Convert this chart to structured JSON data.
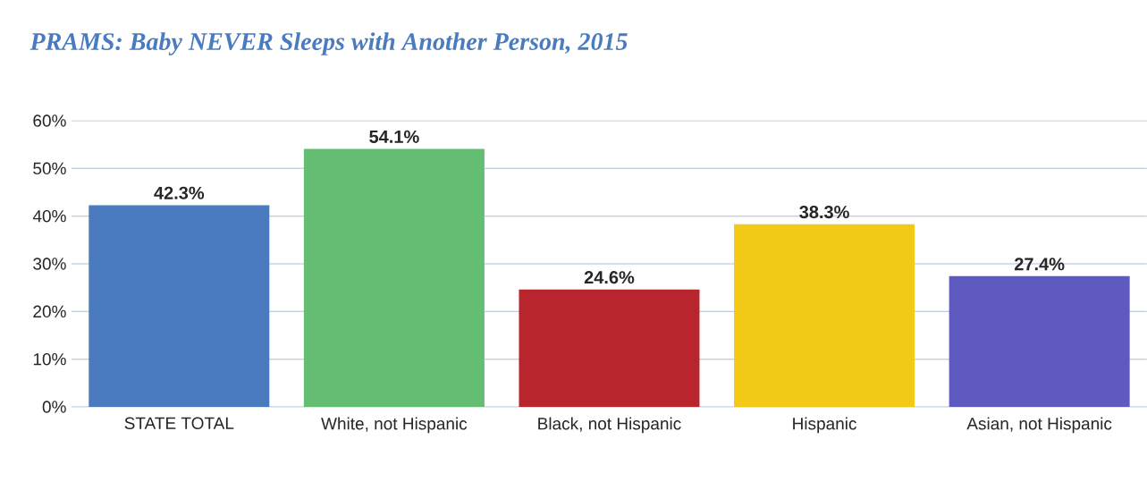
{
  "chart_data": {
    "type": "bar",
    "title": "PRAMS: Baby NEVER Sleeps with Another Person, 2015",
    "categories": [
      "STATE TOTAL",
      "White, not Hispanic",
      "Black, not Hispanic",
      "Hispanic",
      "Asian, not Hispanic"
    ],
    "values": [
      42.3,
      54.1,
      24.6,
      38.3,
      27.4
    ],
    "value_labels": [
      "42.3%",
      "54.1%",
      "24.6%",
      "38.3%",
      "27.4%"
    ],
    "colors": [
      "#4a7bbf",
      "#63bd72",
      "#b8252c",
      "#f2c916",
      "#5f5ac0"
    ],
    "ylim": [
      0,
      60
    ],
    "yticks": [
      {
        "value": 0,
        "label": "0%"
      },
      {
        "value": 10,
        "label": "10%"
      },
      {
        "value": 20,
        "label": "20%"
      },
      {
        "value": 30,
        "label": "30%"
      },
      {
        "value": 40,
        "label": "40%"
      },
      {
        "value": 50,
        "label": "50%"
      },
      {
        "value": 60,
        "label": "60%"
      }
    ],
    "grid": "y"
  }
}
